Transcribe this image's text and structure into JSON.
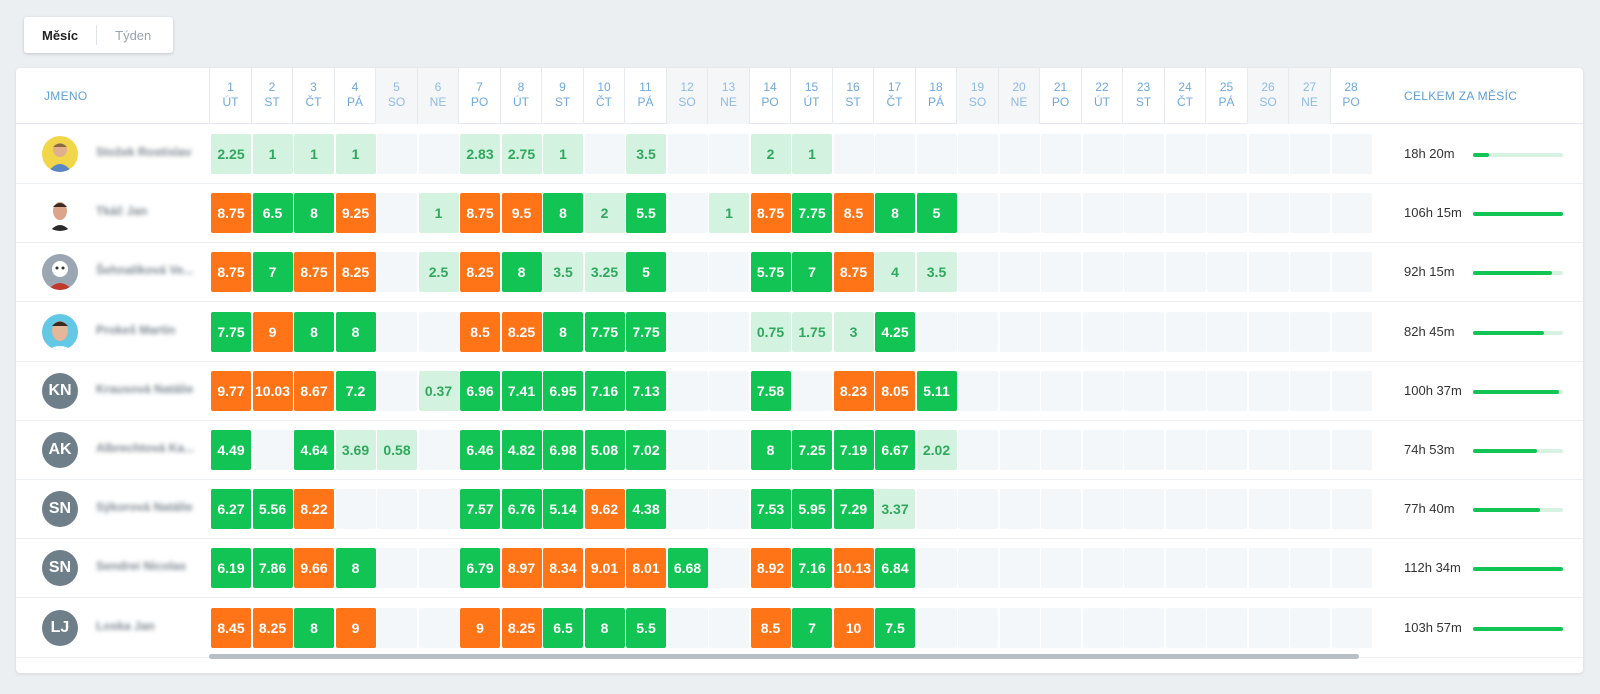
{
  "toggle": {
    "month": "Měsíc",
    "week": "Týden"
  },
  "header": {
    "name": "JMENO",
    "total": "CELKEM ZA MĚSÍC"
  },
  "days": [
    {
      "n": "1",
      "d": "ÚT",
      "w": false
    },
    {
      "n": "2",
      "d": "ST",
      "w": false
    },
    {
      "n": "3",
      "d": "ČT",
      "w": false
    },
    {
      "n": "4",
      "d": "PÁ",
      "w": false
    },
    {
      "n": "5",
      "d": "SO",
      "w": true
    },
    {
      "n": "6",
      "d": "NE",
      "w": true
    },
    {
      "n": "7",
      "d": "PO",
      "w": false
    },
    {
      "n": "8",
      "d": "ÚT",
      "w": false
    },
    {
      "n": "9",
      "d": "ST",
      "w": false
    },
    {
      "n": "10",
      "d": "ČT",
      "w": false
    },
    {
      "n": "11",
      "d": "PÁ",
      "w": false
    },
    {
      "n": "12",
      "d": "SO",
      "w": true
    },
    {
      "n": "13",
      "d": "NE",
      "w": true
    },
    {
      "n": "14",
      "d": "PO",
      "w": false
    },
    {
      "n": "15",
      "d": "ÚT",
      "w": false
    },
    {
      "n": "16",
      "d": "ST",
      "w": false
    },
    {
      "n": "17",
      "d": "ČT",
      "w": false
    },
    {
      "n": "18",
      "d": "PÁ",
      "w": false
    },
    {
      "n": "19",
      "d": "SO",
      "w": true
    },
    {
      "n": "20",
      "d": "NE",
      "w": true
    },
    {
      "n": "21",
      "d": "PO",
      "w": false
    },
    {
      "n": "22",
      "d": "ÚT",
      "w": false
    },
    {
      "n": "23",
      "d": "ST",
      "w": false
    },
    {
      "n": "24",
      "d": "ČT",
      "w": false
    },
    {
      "n": "25",
      "d": "PÁ",
      "w": false
    },
    {
      "n": "26",
      "d": "SO",
      "w": true
    },
    {
      "n": "27",
      "d": "NE",
      "w": true
    },
    {
      "n": "28",
      "d": "PO",
      "w": false
    }
  ],
  "colors": {
    "orange": "#ff7416",
    "green": "#11c453",
    "light": "#d3f3e0"
  },
  "rows": [
    {
      "name": "Stožek Rostislav",
      "avatar": "photo-1",
      "total": "18h 20m",
      "progress": 0.18,
      "cells": [
        [
          "2.25",
          "l"
        ],
        [
          "1",
          "l"
        ],
        [
          "1",
          "l"
        ],
        [
          "1",
          "l"
        ],
        null,
        null,
        [
          "2.83",
          "l"
        ],
        [
          "2.75",
          "l"
        ],
        [
          "1",
          "l"
        ],
        null,
        [
          "3.5",
          "l"
        ],
        null,
        null,
        [
          "2",
          "l"
        ],
        [
          "1",
          "l"
        ]
      ]
    },
    {
      "name": "Tkáč Jan",
      "avatar": "photo-2",
      "total": "106h 15m",
      "progress": 1.0,
      "cells": [
        [
          "8.75",
          "o"
        ],
        [
          "6.5",
          "g"
        ],
        [
          "8",
          "g"
        ],
        [
          "9.25",
          "o"
        ],
        null,
        [
          "1",
          "l"
        ],
        [
          "8.75",
          "o"
        ],
        [
          "9.5",
          "o"
        ],
        [
          "8",
          "g"
        ],
        [
          "2",
          "l"
        ],
        [
          "5.5",
          "g"
        ],
        null,
        [
          "1",
          "l"
        ],
        [
          "8.75",
          "o"
        ],
        [
          "7.75",
          "g"
        ],
        [
          "8.5",
          "o"
        ],
        [
          "8",
          "g"
        ],
        [
          "5",
          "g"
        ]
      ]
    },
    {
      "name": "Šehnalíková Ve...",
      "avatar": "photo-3",
      "total": "92h 15m",
      "progress": 0.88,
      "cells": [
        [
          "8.75",
          "o"
        ],
        [
          "7",
          "g"
        ],
        [
          "8.75",
          "o"
        ],
        [
          "8.25",
          "o"
        ],
        null,
        [
          "2.5",
          "l"
        ],
        [
          "8.25",
          "o"
        ],
        [
          "8",
          "g"
        ],
        [
          "3.5",
          "l"
        ],
        [
          "3.25",
          "l"
        ],
        [
          "5",
          "g"
        ],
        null,
        null,
        [
          "5.75",
          "g"
        ],
        [
          "7",
          "g"
        ],
        [
          "8.75",
          "o"
        ],
        [
          "4",
          "l"
        ],
        [
          "3.5",
          "l"
        ]
      ]
    },
    {
      "name": "Prokeš Martin",
      "avatar": "photo-4",
      "total": "82h 45m",
      "progress": 0.79,
      "cells": [
        [
          "7.75",
          "g"
        ],
        [
          "9",
          "o"
        ],
        [
          "8",
          "g"
        ],
        [
          "8",
          "g"
        ],
        null,
        null,
        [
          "8.5",
          "o"
        ],
        [
          "8.25",
          "o"
        ],
        [
          "8",
          "g"
        ],
        [
          "7.75",
          "g"
        ],
        [
          "7.75",
          "g"
        ],
        null,
        null,
        [
          "0.75",
          "l"
        ],
        [
          "1.75",
          "l"
        ],
        [
          "3",
          "l"
        ],
        [
          "4.25",
          "g"
        ]
      ]
    },
    {
      "name": "Krausová Natálie",
      "avatar": "KN",
      "total": "100h 37m",
      "progress": 0.96,
      "cells": [
        [
          "9.77",
          "o"
        ],
        [
          "10.03",
          "o"
        ],
        [
          "8.67",
          "o"
        ],
        [
          "7.2",
          "g"
        ],
        null,
        [
          "0.37",
          "l"
        ],
        [
          "6.96",
          "g"
        ],
        [
          "7.41",
          "g"
        ],
        [
          "6.95",
          "g"
        ],
        [
          "7.16",
          "g"
        ],
        [
          "7.13",
          "g"
        ],
        null,
        null,
        [
          "7.58",
          "g"
        ],
        null,
        [
          "8.23",
          "o"
        ],
        [
          "8.05",
          "o"
        ],
        [
          "5.11",
          "g"
        ]
      ]
    },
    {
      "name": "Albrechtová Ka...",
      "avatar": "AK",
      "total": "74h 53m",
      "progress": 0.71,
      "cells": [
        [
          "4.49",
          "g"
        ],
        null,
        [
          "4.64",
          "g"
        ],
        [
          "3.69",
          "l"
        ],
        [
          "0.58",
          "l"
        ],
        null,
        [
          "6.46",
          "g"
        ],
        [
          "4.82",
          "g"
        ],
        [
          "6.98",
          "g"
        ],
        [
          "5.08",
          "g"
        ],
        [
          "7.02",
          "g"
        ],
        null,
        null,
        [
          "8",
          "g"
        ],
        [
          "7.25",
          "g"
        ],
        [
          "7.19",
          "g"
        ],
        [
          "6.67",
          "g"
        ],
        [
          "2.02",
          "l"
        ]
      ]
    },
    {
      "name": "Sýkorová Natálie",
      "avatar": "SN",
      "total": "77h 40m",
      "progress": 0.74,
      "cells": [
        [
          "6.27",
          "g"
        ],
        [
          "5.56",
          "g"
        ],
        [
          "8.22",
          "o"
        ],
        null,
        null,
        null,
        [
          "7.57",
          "g"
        ],
        [
          "6.76",
          "g"
        ],
        [
          "5.14",
          "g"
        ],
        [
          "9.62",
          "o"
        ],
        [
          "4.38",
          "g"
        ],
        null,
        null,
        [
          "7.53",
          "g"
        ],
        [
          "5.95",
          "g"
        ],
        [
          "7.29",
          "g"
        ],
        [
          "3.37",
          "l"
        ]
      ]
    },
    {
      "name": "Sendrei Nicolas",
      "avatar": "SN",
      "total": "112h 34m",
      "progress": 1.0,
      "cells": [
        [
          "6.19",
          "g"
        ],
        [
          "7.86",
          "g"
        ],
        [
          "9.66",
          "o"
        ],
        [
          "8",
          "g"
        ],
        null,
        null,
        [
          "6.79",
          "g"
        ],
        [
          "8.97",
          "o"
        ],
        [
          "8.34",
          "o"
        ],
        [
          "9.01",
          "o"
        ],
        [
          "8.01",
          "o"
        ],
        [
          "6.68",
          "g"
        ],
        null,
        [
          "8.92",
          "o"
        ],
        [
          "7.16",
          "g"
        ],
        [
          "10.13",
          "o"
        ],
        [
          "6.84",
          "g"
        ]
      ]
    },
    {
      "name": "Loska Jan",
      "avatar": "LJ",
      "total": "103h 57m",
      "progress": 1.0,
      "cells": [
        [
          "8.45",
          "o"
        ],
        [
          "8.25",
          "o"
        ],
        [
          "8",
          "g"
        ],
        [
          "9",
          "o"
        ],
        null,
        null,
        [
          "9",
          "o"
        ],
        [
          "8.25",
          "o"
        ],
        [
          "6.5",
          "g"
        ],
        [
          "8",
          "g"
        ],
        [
          "5.5",
          "g"
        ],
        null,
        null,
        [
          "8.5",
          "o"
        ],
        [
          "7",
          "g"
        ],
        [
          "10",
          "o"
        ],
        [
          "7.5",
          "g"
        ]
      ]
    }
  ]
}
